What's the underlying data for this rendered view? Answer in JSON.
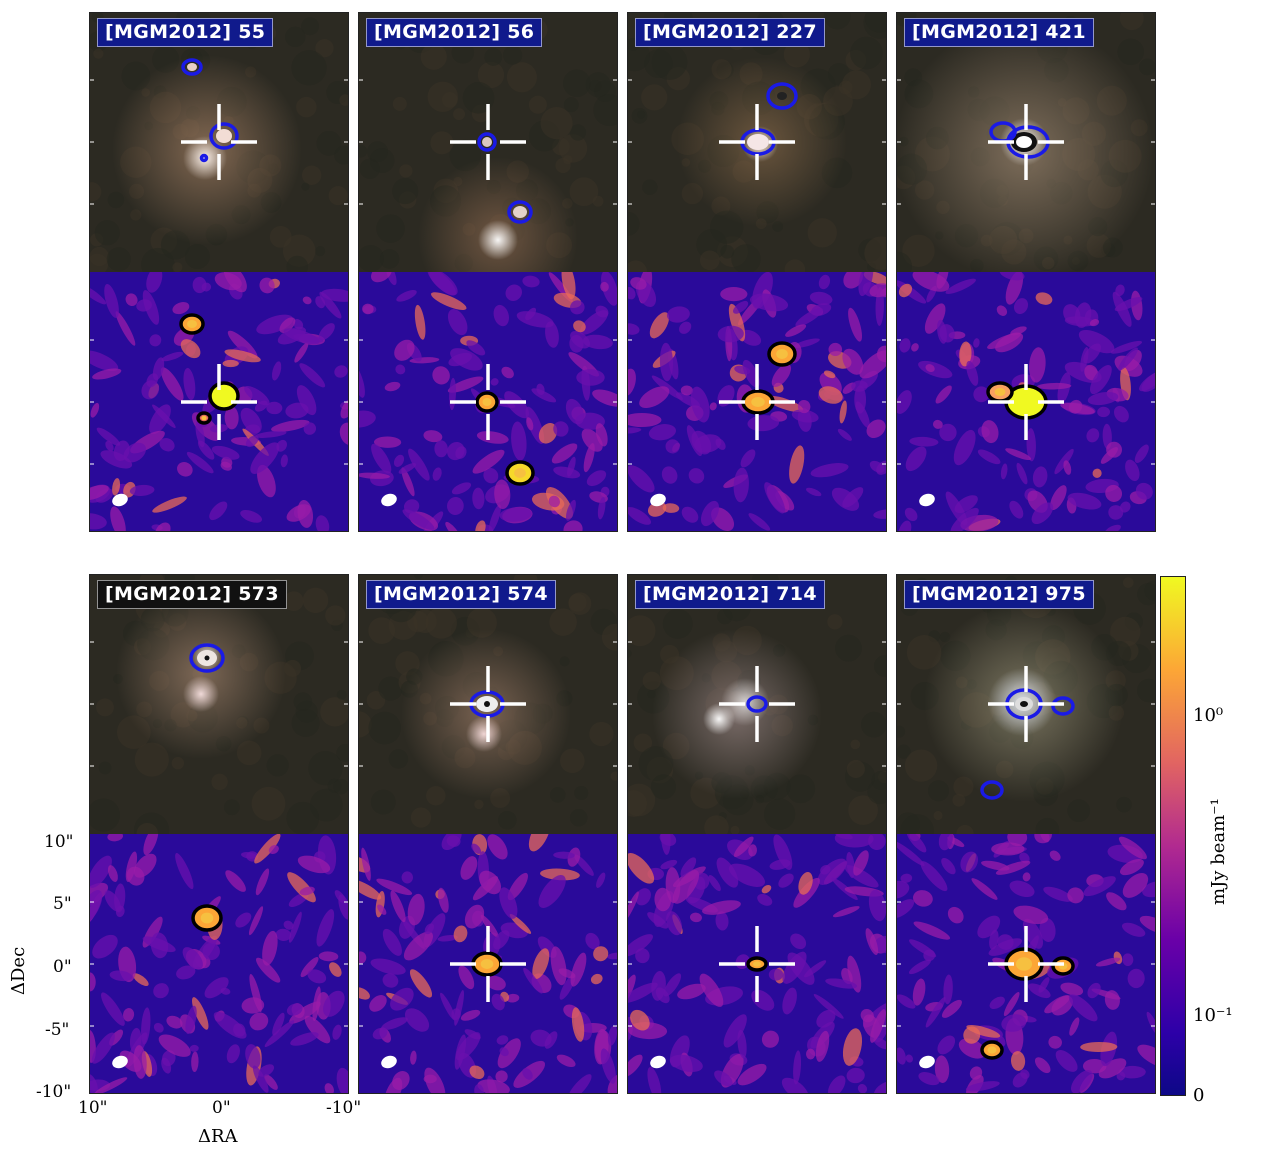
{
  "panels": [
    {
      "label": "[MGM2012] 55",
      "label_bg": "#101a8c",
      "cross": true
    },
    {
      "label": "[MGM2012] 56",
      "label_bg": "#101a8c",
      "cross": true
    },
    {
      "label": "[MGM2012] 227",
      "label_bg": "#101a8c",
      "cross": true
    },
    {
      "label": "[MGM2012] 421",
      "label_bg": "#101a8c",
      "cross": true
    },
    {
      "label": "[MGM2012] 573",
      "label_bg": "#111111",
      "cross": false
    },
    {
      "label": "[MGM2012] 574",
      "label_bg": "#101a8c",
      "cross": true
    },
    {
      "label": "[MGM2012] 714",
      "label_bg": "#101a8c",
      "cross": true
    },
    {
      "label": "[MGM2012] 975",
      "label_bg": "#101a8c",
      "cross": true
    }
  ],
  "axes": {
    "xlabel": "ΔRA",
    "ylabel": "ΔDec",
    "xticks": [
      "10\"",
      "0\"",
      "-10\""
    ],
    "yticks": [
      "10\"",
      "5\"",
      "0\"",
      "-5\"",
      "-10\""
    ]
  },
  "colorbar": {
    "label": "mJy beam⁻¹",
    "ticks": [
      "10⁰",
      "10⁻¹",
      "0"
    ],
    "colormap": "plasma"
  },
  "colors": {
    "contour_optical": "#1a1ae6",
    "contour_mm": "#000000",
    "crosshair": "#ffffff",
    "mm_background": "#2a0a9a"
  }
}
